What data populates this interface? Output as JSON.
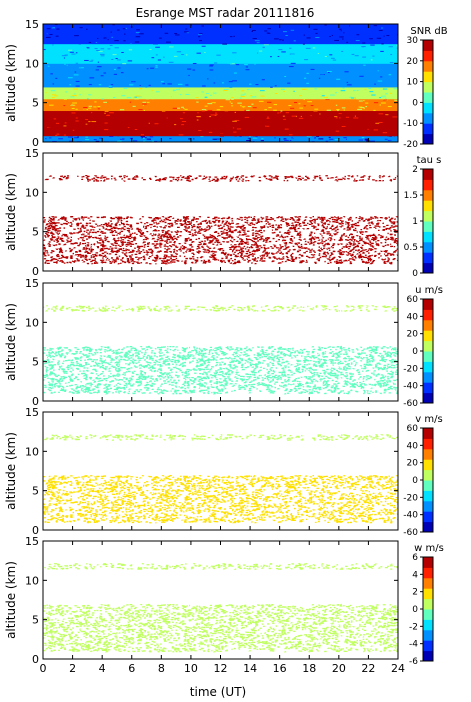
{
  "title": "Esrange MST radar 20111816",
  "xlabel": "time (UT)",
  "colors": {
    "jet": [
      "#0000b4",
      "#0030ff",
      "#0090ff",
      "#00e0ff",
      "#60ffc0",
      "#c0ff60",
      "#ffe000",
      "#ff8000",
      "#ff2000",
      "#b40000"
    ],
    "axis": "#000000"
  },
  "chart_data": [
    {
      "type": "heatmap",
      "quantity": "SNR",
      "ylabel": "altitude (km)",
      "cb_label": "SNR dB",
      "xlim": [
        0,
        24
      ],
      "ylim": [
        0,
        15
      ],
      "clim": [
        -20,
        30
      ],
      "xticks": [
        "0",
        "2",
        "4",
        "6",
        "8",
        "10",
        "12",
        "14",
        "16",
        "18",
        "20",
        "22",
        "24"
      ],
      "yticks": [
        "0",
        "5",
        "10",
        "15"
      ],
      "cb_ticks": [
        "30",
        "20",
        "10",
        "0",
        "-10",
        "-20"
      ],
      "layers": [
        {
          "alt_from": 0.0,
          "alt_to": 0.8,
          "level": -10
        },
        {
          "alt_from": 0.8,
          "alt_to": 2.0,
          "level": 30
        },
        {
          "alt_from": 2.0,
          "alt_to": 4.0,
          "level": 25
        },
        {
          "alt_from": 4.0,
          "alt_to": 5.5,
          "level": 15
        },
        {
          "alt_from": 5.5,
          "alt_to": 7.0,
          "level": 5
        },
        {
          "alt_from": 7.0,
          "alt_to": 10.0,
          "level": -8
        },
        {
          "alt_from": 10.0,
          "alt_to": 12.5,
          "level": -5
        },
        {
          "alt_from": 12.5,
          "alt_to": 15.0,
          "level": -15
        }
      ]
    },
    {
      "type": "heatmap",
      "quantity": "tau",
      "ylabel": "altitude (km)",
      "cb_label": "tau s",
      "xlim": [
        0,
        24
      ],
      "ylim": [
        0,
        15
      ],
      "clim": [
        0,
        2
      ],
      "xticks": [
        "0",
        "2",
        "4",
        "6",
        "8",
        "10",
        "12",
        "14",
        "16",
        "18",
        "20",
        "22",
        "24"
      ],
      "yticks": [
        "0",
        "5",
        "10",
        "15"
      ],
      "cb_ticks": [
        "2",
        "1.5",
        "1",
        "0.5",
        "0"
      ],
      "layers": [
        {
          "alt_from": 1.0,
          "alt_to": 7.0,
          "level": 2.0
        },
        {
          "alt_from": 11.5,
          "alt_to": 12.2,
          "level": 2.0
        }
      ]
    },
    {
      "type": "heatmap",
      "quantity": "u",
      "ylabel": "altitude (km)",
      "cb_label": "u m/s",
      "xlim": [
        0,
        24
      ],
      "ylim": [
        0,
        15
      ],
      "clim": [
        -60,
        60
      ],
      "xticks": [
        "0",
        "2",
        "4",
        "6",
        "8",
        "10",
        "12",
        "14",
        "16",
        "18",
        "20",
        "22",
        "24"
      ],
      "yticks": [
        "0",
        "5",
        "10",
        "15"
      ],
      "cb_ticks": [
        "60",
        "40",
        "20",
        "0",
        "-20",
        "-40",
        "-60"
      ],
      "layers": [
        {
          "alt_from": 1.0,
          "alt_to": 7.0,
          "level": -5
        },
        {
          "alt_from": 11.5,
          "alt_to": 12.2,
          "level": 8
        }
      ]
    },
    {
      "type": "heatmap",
      "quantity": "v",
      "ylabel": "altitude (km)",
      "cb_label": "v m/s",
      "xlim": [
        0,
        24
      ],
      "ylim": [
        0,
        15
      ],
      "clim": [
        -60,
        60
      ],
      "xticks": [
        "0",
        "2",
        "4",
        "6",
        "8",
        "10",
        "12",
        "14",
        "16",
        "18",
        "20",
        "22",
        "24"
      ],
      "yticks": [
        "0",
        "5",
        "10",
        "15"
      ],
      "cb_ticks": [
        "60",
        "40",
        "20",
        "0",
        "-20",
        "-40",
        "-60"
      ],
      "layers": [
        {
          "alt_from": 1.0,
          "alt_to": 7.0,
          "level": 12
        },
        {
          "alt_from": 11.5,
          "alt_to": 12.2,
          "level": 10
        }
      ]
    },
    {
      "type": "heatmap",
      "quantity": "w",
      "ylabel": "altitude (km)",
      "cb_label": "w m/s",
      "xlim": [
        0,
        24
      ],
      "ylim": [
        0,
        15
      ],
      "clim": [
        -6,
        6
      ],
      "xticks": [
        "0",
        "2",
        "4",
        "6",
        "8",
        "10",
        "12",
        "14",
        "16",
        "18",
        "20",
        "22",
        "24"
      ],
      "yticks": [
        "0",
        "5",
        "10",
        "15"
      ],
      "cb_ticks": [
        "6",
        "4",
        "2",
        "0",
        "-2",
        "-4",
        "-6"
      ],
      "layers": [
        {
          "alt_from": 1.0,
          "alt_to": 7.0,
          "level": 0.8
        },
        {
          "alt_from": 11.5,
          "alt_to": 12.2,
          "level": 0.6
        }
      ]
    }
  ]
}
